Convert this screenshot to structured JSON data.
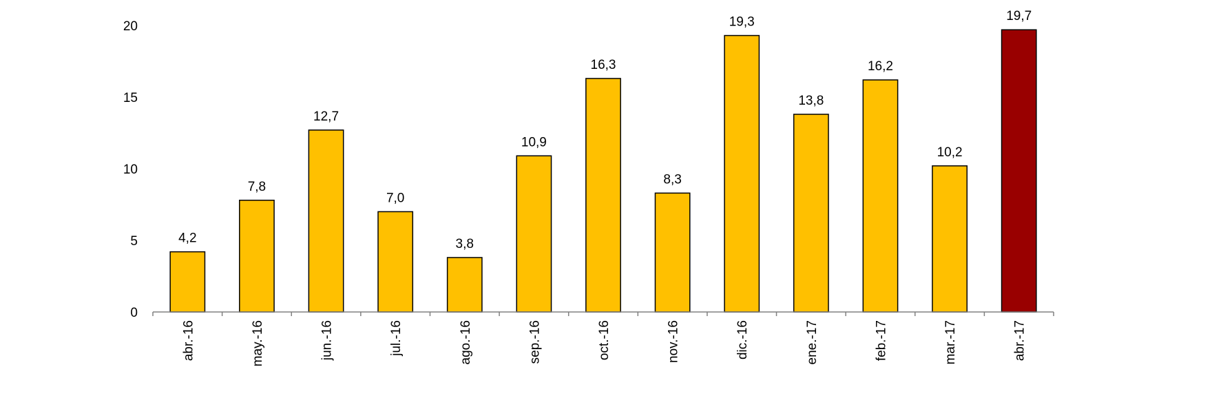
{
  "chart_data": {
    "type": "bar",
    "categories": [
      "abr.-16",
      "may.-16",
      "jun.-16",
      "jul.-16",
      "ago.-16",
      "sep.-16",
      "oct.-16",
      "nov.-16",
      "dic.-16",
      "ene.-17",
      "feb.-17",
      "mar.-17",
      "abr.-17"
    ],
    "values": [
      4.2,
      7.8,
      12.7,
      7.0,
      3.8,
      10.9,
      16.3,
      8.3,
      19.3,
      13.8,
      16.2,
      10.2,
      19.7
    ],
    "data_labels": [
      "4,2",
      "7,8",
      "12,7",
      "7,0",
      "3,8",
      "10,9",
      "16,3",
      "8,3",
      "19,3",
      "13,8",
      "16,2",
      "10,2",
      "19,7"
    ],
    "y_ticks": [
      "0",
      "5",
      "10",
      "15",
      "20"
    ],
    "ylim": [
      0,
      20
    ],
    "grid": false,
    "legend": "none",
    "title": "",
    "xlabel": "",
    "ylabel": "",
    "colors": {
      "bar": "#FFC000",
      "highlight_bar": "#990000",
      "bar_outline": "#000000",
      "axis": "#808080"
    },
    "highlight_index": 12
  }
}
